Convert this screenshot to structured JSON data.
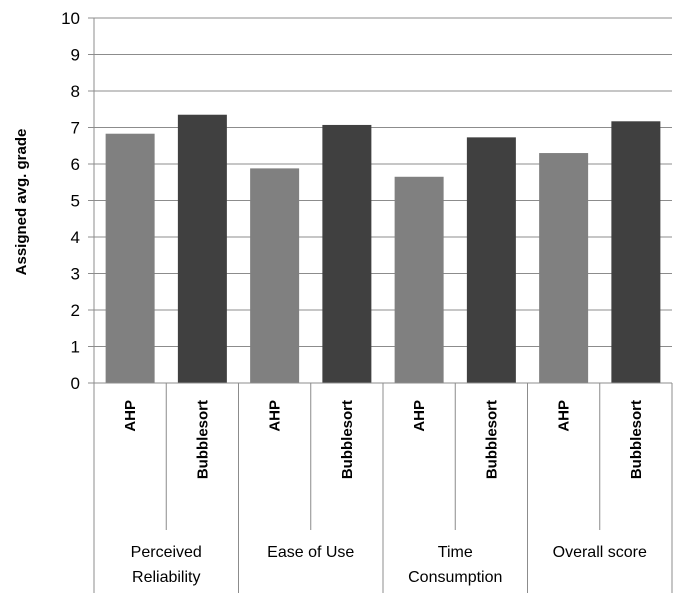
{
  "chart_data": {
    "type": "bar",
    "title": "",
    "xlabel": "",
    "ylabel": "Assigned avg. grade",
    "ylim": [
      0,
      10
    ],
    "yticks": [
      0,
      1,
      2,
      3,
      4,
      5,
      6,
      7,
      8,
      9,
      10
    ],
    "grid": "horizontal",
    "groups": [
      {
        "label_lines": [
          "Perceived",
          "Reliability"
        ]
      },
      {
        "label_lines": [
          "Ease of Use"
        ]
      },
      {
        "label_lines": [
          "Time",
          "Consumption"
        ]
      },
      {
        "label_lines": [
          "Overall score"
        ]
      }
    ],
    "bar_labels": [
      "AHP",
      "Bubblesort"
    ],
    "series": [
      {
        "values": [
          6.83,
          5.88,
          5.65,
          6.3
        ],
        "color": "#808080"
      },
      {
        "values": [
          7.35,
          7.07,
          6.73,
          7.17
        ],
        "color": "#404040"
      }
    ]
  }
}
